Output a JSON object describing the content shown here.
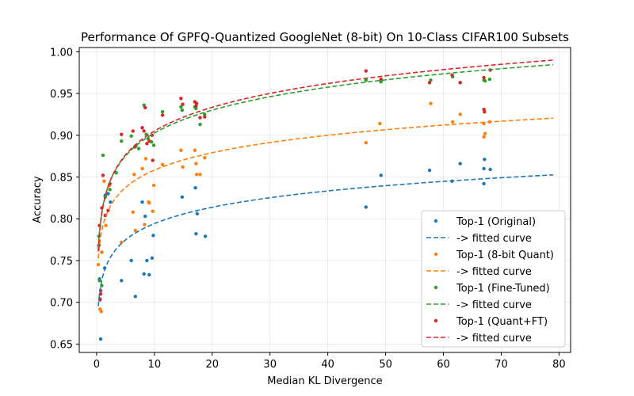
{
  "chart_data": {
    "type": "scatter",
    "title": "Performance Of GPFQ-Quantized GoogleNet (8-bit) On 10-Class CIFAR100 Subsets",
    "xlabel": "Median KL Divergence",
    "ylabel": "Accuracy",
    "xlim": [
      -3,
      82
    ],
    "ylim": [
      0.64,
      1.005
    ],
    "xticks": [
      0,
      10,
      20,
      30,
      40,
      50,
      60,
      70,
      80
    ],
    "yticks": [
      0.65,
      0.7,
      0.75,
      0.8,
      0.85,
      0.9,
      0.95,
      1.0
    ],
    "xtick_labels": [
      "0",
      "10",
      "20",
      "30",
      "40",
      "50",
      "60",
      "70",
      "80"
    ],
    "ytick_labels": [
      "0.65",
      "0.70",
      "0.75",
      "0.80",
      "0.85",
      "0.90",
      "0.95",
      "1.00"
    ],
    "grid": true,
    "legend_position": "lower right",
    "fit_x_range": [
      0.3,
      79
    ],
    "series": [
      {
        "name": "Top-1 (Original)",
        "fit_name": "-> fitted curve",
        "color": "#1f77b4",
        "fit": {
          "form": "a + b*ln(x)",
          "a": 0.7293,
          "b": 0.0282
        },
        "points": [
          [
            0.7,
            0.656
          ],
          [
            0.6,
            0.704
          ],
          [
            0.5,
            0.728
          ],
          [
            0.9,
            0.76
          ],
          [
            1.4,
            0.741
          ],
          [
            1.5,
            0.828
          ],
          [
            2.0,
            0.83
          ],
          [
            2.4,
            0.82
          ],
          [
            4.3,
            0.726
          ],
          [
            6.0,
            0.75
          ],
          [
            6.7,
            0.707
          ],
          [
            7.9,
            0.82
          ],
          [
            8.4,
            0.803
          ],
          [
            8.2,
            0.734
          ],
          [
            8.7,
            0.75
          ],
          [
            9.1,
            0.733
          ],
          [
            9.6,
            0.753
          ],
          [
            9.8,
            0.78
          ],
          [
            14.8,
            0.826
          ],
          [
            17.1,
            0.837
          ],
          [
            17.4,
            0.806
          ],
          [
            17.2,
            0.782
          ],
          [
            18.8,
            0.779
          ],
          [
            46.6,
            0.814
          ],
          [
            49.2,
            0.852
          ],
          [
            57.6,
            0.858
          ],
          [
            61.5,
            0.845
          ],
          [
            62.9,
            0.866
          ],
          [
            67.0,
            0.842
          ],
          [
            67.1,
            0.871
          ],
          [
            67.0,
            0.86
          ],
          [
            68.1,
            0.859
          ]
        ]
      },
      {
        "name": "Top-1 (8-bit Quant)",
        "fit_name": "-> fitted curve",
        "color": "#ff7f0e",
        "fit": {
          "form": "a + b*ln(x)",
          "a": 0.7889,
          "b": 0.0301
        },
        "points": [
          [
            0.3,
            0.745
          ],
          [
            0.6,
            0.692
          ],
          [
            0.8,
            0.689
          ],
          [
            0.9,
            0.76
          ],
          [
            1.3,
            0.845
          ],
          [
            1.6,
            0.792
          ],
          [
            2.2,
            0.84
          ],
          [
            4.3,
            0.772
          ],
          [
            6.3,
            0.808
          ],
          [
            6.5,
            0.853
          ],
          [
            6.7,
            0.786
          ],
          [
            7.9,
            0.86
          ],
          [
            8.3,
            0.793
          ],
          [
            8.5,
            0.872
          ],
          [
            9.0,
            0.82
          ],
          [
            9.1,
            0.819
          ],
          [
            9.7,
            0.809
          ],
          [
            9.9,
            0.84
          ],
          [
            11.4,
            0.865
          ],
          [
            14.6,
            0.882
          ],
          [
            14.9,
            0.862
          ],
          [
            17.0,
            0.882
          ],
          [
            17.2,
            0.866
          ],
          [
            17.3,
            0.853
          ],
          [
            17.9,
            0.853
          ],
          [
            18.7,
            0.873
          ],
          [
            46.6,
            0.891
          ],
          [
            49.0,
            0.914
          ],
          [
            57.8,
            0.938
          ],
          [
            61.6,
            0.916
          ],
          [
            62.9,
            0.925
          ],
          [
            67.0,
            0.914
          ],
          [
            67.0,
            0.898
          ],
          [
            67.2,
            0.902
          ],
          [
            68.0,
            0.916
          ]
        ]
      },
      {
        "name": "Top-1 (Fine-Tuned)",
        "fit_name": "-> fitted curve",
        "color": "#2ca02c",
        "fit": {
          "form": "a + b*ln(x)",
          "a": 0.8114,
          "b": 0.0396
        },
        "points": [
          [
            0.4,
            0.779
          ],
          [
            0.5,
            0.726
          ],
          [
            0.9,
            0.72
          ],
          [
            1.1,
            0.876
          ],
          [
            1.5,
            0.826
          ],
          [
            2.3,
            0.835
          ],
          [
            3.4,
            0.855
          ],
          [
            4.3,
            0.893
          ],
          [
            6.0,
            0.899
          ],
          [
            6.8,
            0.887
          ],
          [
            7.3,
            0.884
          ],
          [
            8.2,
            0.936
          ],
          [
            8.6,
            0.901
          ],
          [
            8.9,
            0.896
          ],
          [
            9.5,
            0.892
          ],
          [
            9.9,
            0.888
          ],
          [
            11.4,
            0.928
          ],
          [
            14.6,
            0.934
          ],
          [
            14.8,
            0.93
          ],
          [
            17.0,
            0.934
          ],
          [
            17.2,
            0.932
          ],
          [
            17.9,
            0.913
          ],
          [
            18.7,
            0.925
          ],
          [
            46.6,
            0.966
          ],
          [
            49.2,
            0.964
          ],
          [
            57.8,
            0.966
          ],
          [
            61.6,
            0.97
          ],
          [
            62.9,
            0.963
          ],
          [
            67.0,
            0.966
          ],
          [
            67.2,
            0.965
          ],
          [
            68.0,
            0.967
          ]
        ]
      },
      {
        "name": "Top-1 (Quant+FT)",
        "fit_name": "-> fitted curve",
        "color": "#d62728",
        "fit": {
          "form": "a + b*ln(x)",
          "a": 0.8103,
          "b": 0.0411
        },
        "points": [
          [
            0.4,
            0.768
          ],
          [
            0.5,
            0.792
          ],
          [
            0.6,
            0.703
          ],
          [
            0.7,
            0.714
          ],
          [
            0.7,
            0.71
          ],
          [
            0.9,
            0.813
          ],
          [
            1.1,
            0.852
          ],
          [
            1.5,
            0.804
          ],
          [
            2.0,
            0.81
          ],
          [
            2.3,
            0.842
          ],
          [
            4.3,
            0.901
          ],
          [
            6.3,
            0.905
          ],
          [
            6.6,
            0.886
          ],
          [
            7.9,
            0.909
          ],
          [
            8.2,
            0.905
          ],
          [
            8.4,
            0.933
          ],
          [
            8.7,
            0.89
          ],
          [
            9.1,
            0.893
          ],
          [
            9.6,
            0.9
          ],
          [
            9.7,
            0.87
          ],
          [
            11.4,
            0.924
          ],
          [
            14.6,
            0.944
          ],
          [
            14.9,
            0.937
          ],
          [
            17.0,
            0.94
          ],
          [
            17.2,
            0.935
          ],
          [
            17.3,
            0.938
          ],
          [
            17.9,
            0.921
          ],
          [
            18.7,
            0.922
          ],
          [
            46.6,
            0.977
          ],
          [
            49.2,
            0.967
          ],
          [
            57.6,
            0.963
          ],
          [
            61.5,
            0.972
          ],
          [
            62.9,
            0.963
          ],
          [
            67.0,
            0.969
          ],
          [
            67.0,
            0.931
          ],
          [
            67.1,
            0.928
          ],
          [
            68.1,
            0.978
          ]
        ]
      }
    ]
  }
}
